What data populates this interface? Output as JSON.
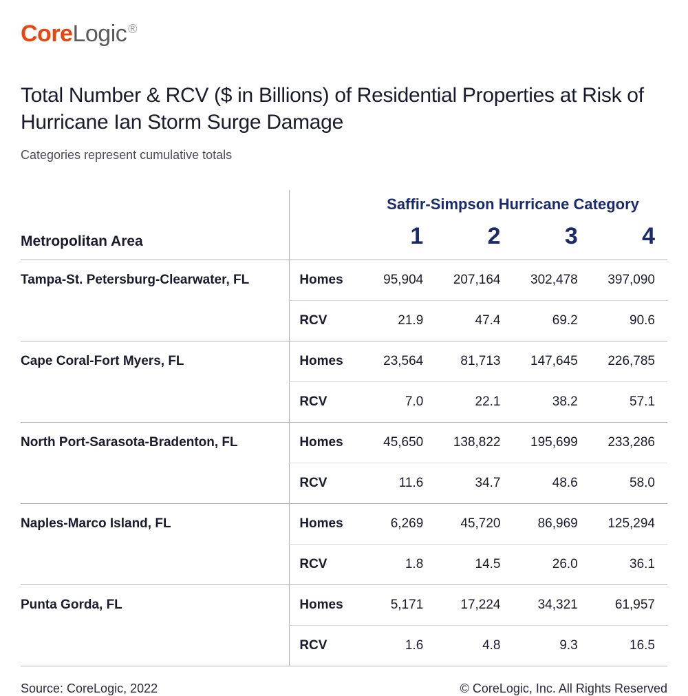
{
  "brand": {
    "part1": "Core",
    "part2": "Logic",
    "reg": "®"
  },
  "title": "Total Number & RCV ($ in Billions) of Residential Properties at Risk of Hurricane Ian Storm Surge Damage",
  "subtitle": "Categories represent cumulative totals",
  "columns": {
    "metro_header": "Metropolitan Area",
    "group_header": "Saffir-Simpson Hurricane Category",
    "cats": [
      "1",
      "2",
      "3",
      "4"
    ]
  },
  "metrics": {
    "homes": "Homes",
    "rcv": "RCV"
  },
  "rows": [
    {
      "metro": "Tampa-St. Petersburg-Clearwater, FL",
      "homes": [
        "95,904",
        "207,164",
        "302,478",
        "397,090"
      ],
      "rcv": [
        "21.9",
        "47.4",
        "69.2",
        "90.6"
      ]
    },
    {
      "metro": "Cape Coral-Fort Myers, FL",
      "homes": [
        "23,564",
        "81,713",
        "147,645",
        "226,785"
      ],
      "rcv": [
        "7.0",
        "22.1",
        "38.2",
        "57.1"
      ]
    },
    {
      "metro": "North Port-Sarasota-Bradenton, FL",
      "homes": [
        "45,650",
        "138,822",
        "195,699",
        "233,286"
      ],
      "rcv": [
        "11.6",
        "34.7",
        "48.6",
        "58.0"
      ]
    },
    {
      "metro": "Naples-Marco Island, FL",
      "homes": [
        "6,269",
        "45,720",
        "86,969",
        "125,294"
      ],
      "rcv": [
        "1.8",
        "14.5",
        "26.0",
        "36.1"
      ]
    },
    {
      "metro": "Punta Gorda, FL",
      "homes": [
        "5,171",
        "17,224",
        "34,321",
        "61,957"
      ],
      "rcv": [
        "1.6",
        "4.8",
        "9.3",
        "16.5"
      ]
    }
  ],
  "footer": {
    "source": "Source: CoreLogic, 2022",
    "copyright": "© CoreLogic, Inc. All Rights Reserved"
  },
  "colors": {
    "brand_accent": "#e84610",
    "brand_gray": "#5a5a5a",
    "header_navy": "#1a2b6d",
    "text": "#1a1a2e",
    "rule": "#b0b0b8",
    "sub_rule": "#d8d8de",
    "background": "#ffffff"
  },
  "typography": {
    "title_fontsize_pt": 22,
    "body_fontsize_pt": 14,
    "header_fontsize_pt": 16,
    "cat_number_fontsize_pt": 26
  }
}
